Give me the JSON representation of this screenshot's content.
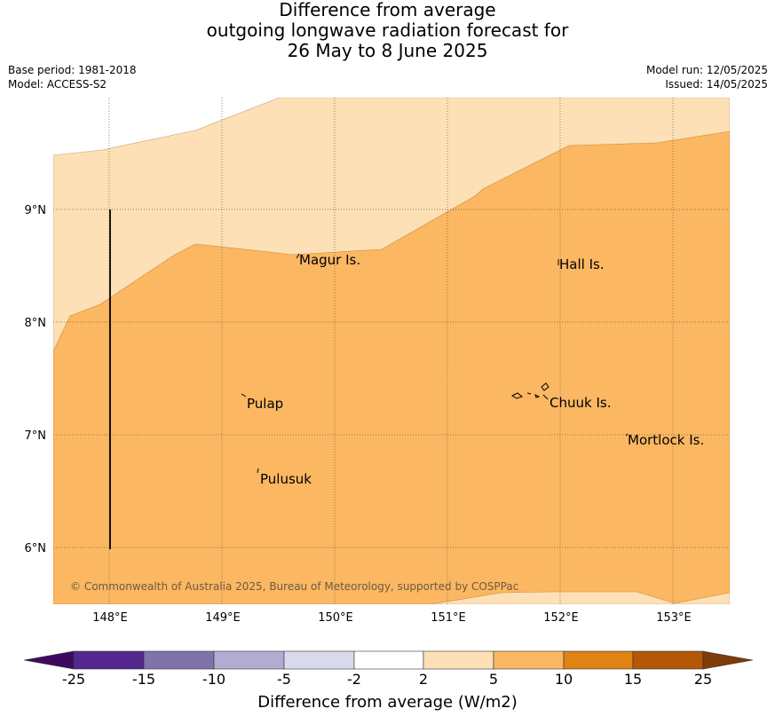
{
  "header": {
    "title_lines": [
      "Difference from average",
      "outgoing longwave radiation forecast for",
      "26 May to 8 June 2025"
    ],
    "base_period": "Base period: 1981-2018",
    "model": "Model: ACCESS-S2",
    "model_run": "Model run: 12/05/2025",
    "issued": "Issued: 14/05/2025"
  },
  "map": {
    "lon_labels": [
      "148°E",
      "149°E",
      "150°E",
      "151°E",
      "152°E",
      "153°E"
    ],
    "lat_labels": [
      "9°N",
      "8°N",
      "7°N",
      "6°N"
    ],
    "places": [
      "Magur Is.",
      "Hall Is.",
      "Pulap",
      "Chuuk Is.",
      "Mortlock Is.",
      "Pulusuk"
    ],
    "copyright": "© Commonwealth of Australia 2025, Bureau of Meteorology, supported by COSPPac",
    "fill_colors": {
      "2_to_5": "#fde0b6",
      "5_to_10": "#fbb762"
    }
  },
  "colorbar": {
    "title": "Difference from average (W/m2)",
    "tick_labels": [
      "-25",
      "-15",
      "-10",
      "-5",
      "-2",
      "2",
      "5",
      "10",
      "15",
      "25"
    ],
    "colors": [
      "#3f0a5e",
      "#54278f",
      "#8073ac",
      "#b2abd2",
      "#d8daeb",
      "#ffffff",
      "#fde0b6",
      "#fbb762",
      "#e08214",
      "#b35806",
      "#7f3b08"
    ]
  }
}
